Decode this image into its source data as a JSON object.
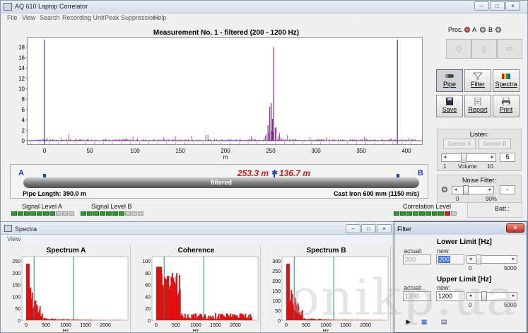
{
  "app": {
    "title": "AQ 610 Laptop Correlator",
    "menu": [
      "File",
      "View",
      "Search",
      "Recording Unit",
      "Peak Suppression",
      "Help"
    ]
  },
  "correlogram": {
    "title": "Measurement No. 1 - filtered (200 - 1200 Hz)",
    "x_unit": "m",
    "x_ticks": [
      "0",
      "50",
      "100",
      "150",
      "200",
      "250",
      "300",
      "350",
      "400"
    ],
    "y_ticks": [
      "0",
      "2",
      "4",
      "6",
      "8",
      "10",
      "12",
      "14",
      "16",
      "18"
    ]
  },
  "pipe": {
    "end_a": "A",
    "end_b": "B",
    "label": "filtered",
    "distance_a": "253.3 m",
    "distance_b": "136.7 m",
    "separator": "✱",
    "length": "Pipe Length: 390.0 m",
    "material": "Cast Iron 600 mm (1150 m/s)",
    "leak_fraction": 0.65
  },
  "levels": {
    "signal_a_label": "Signal Level A",
    "signal_a": 7,
    "signal_b_label": "Signal Level B",
    "signal_b": 7,
    "correlation_label": "Correlation Level",
    "correlation": 9,
    "segments": 10,
    "battery_label": "Batt.:"
  },
  "right_panel": {
    "proc_label": "Proc.",
    "ch_a": "A",
    "ch_b": "B",
    "buttons": {
      "pipe": "Pipe",
      "filter": "Filter",
      "spectra": "Spectra",
      "save": "Save",
      "report": "Report",
      "print": "Print"
    },
    "listen": {
      "title": "Listen:",
      "sensor_a": "Sensor A",
      "sensor_b": "Sensor B",
      "volume_value": "5",
      "volume_min": "1",
      "volume_label": "Volume",
      "volume_max": "10",
      "volume_fraction": 0.35
    },
    "noise": {
      "title": "Noise Filter:",
      "value": "-",
      "min": "0",
      "max": "90%",
      "fraction": 0.15
    }
  },
  "spectra_window": {
    "title": "Spectra",
    "menu": "View",
    "panels": [
      {
        "title": "Spectrum A",
        "x_unit": "Hz",
        "x_ticks": [
          "0",
          "500",
          "1000",
          "1500",
          "2000"
        ],
        "y_ticks": [
          "0",
          "50",
          "100",
          "150",
          "200",
          "250"
        ]
      },
      {
        "title": "Coherence",
        "x_unit": "Hz",
        "x_ticks": [
          "0",
          "500",
          "1000",
          "1500",
          "2000"
        ],
        "y_ticks": [
          "0",
          "20",
          "40",
          "60",
          "80",
          "100"
        ]
      },
      {
        "title": "Spectrum B",
        "x_unit": "Hz",
        "x_ticks": [
          "0",
          "500",
          "1000",
          "1500",
          "2000"
        ],
        "y_ticks": [
          "0",
          "50",
          "100",
          "150",
          "200",
          "250",
          "300"
        ]
      }
    ]
  },
  "filter_dialog": {
    "title": "Filter",
    "lower_title": "Lower Limit [Hz]",
    "upper_title": "Upper Limit [Hz]",
    "actual_label": "actual:",
    "new_label": "new:",
    "lower_actual": "200",
    "lower_new": "200",
    "upper_actual": "1200",
    "upper_new": "1200",
    "slider_min": "0",
    "slider_max": "5000",
    "lower_fraction": 0.04,
    "upper_fraction": 0.24
  },
  "watermark": "onikp.ua",
  "colors": {
    "trace": "#7a2a8a",
    "distance": "#d41616",
    "accent_blue": "#1a3fbd",
    "spectrum": "#e01010",
    "cursor": "#1a8a8a"
  }
}
